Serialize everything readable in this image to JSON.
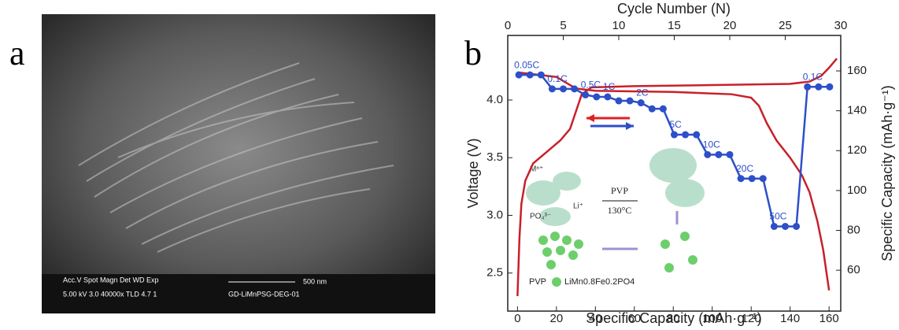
{
  "panel_a": {
    "label": "a",
    "info_header": "Acc.V  Spot Magn   Det  WD  Exp",
    "info_values": "5.00 kV 3.0  40000x  TLD 4.7   1",
    "scale_label": "500 nm",
    "sample_name": "GD-LiMnPSG-DEG-01"
  },
  "chart_data": {
    "type": "line",
    "panel_label": "b",
    "xlabel": "Specific Capacity (mAh·g⁻¹)",
    "x2label": "Cycle Number (N)",
    "ylabel": "Voltage (V)",
    "y2label": "Specific Capacity (mAh·g⁻¹)",
    "xlim": [
      -5,
      166
    ],
    "xticks": [
      0,
      20,
      40,
      60,
      80,
      100,
      120,
      140,
      160
    ],
    "x2lim": [
      0,
      30
    ],
    "x2ticks": [
      0,
      5,
      10,
      15,
      20,
      25,
      30
    ],
    "ylim": [
      2.17,
      4.56
    ],
    "yticks": [
      {
        "value": 2.5,
        "label": "2.5"
      },
      {
        "value": 3,
        "label": "3.0"
      },
      {
        "value": 3.5,
        "label": "3.5"
      },
      {
        "value": 4,
        "label": "4.0"
      }
    ],
    "y2lim": [
      39.5,
      177.8
    ],
    "y2ticks": [
      60,
      80,
      100,
      120,
      140,
      160
    ],
    "series": [
      {
        "color": "#c8202a",
        "x": [
          0,
          1,
          2,
          4,
          8,
          15,
          22,
          27,
          30,
          33,
          38,
          60,
          100,
          140,
          150,
          156,
          160,
          164
        ],
        "values": [
          2.3,
          2.8,
          3.1,
          3.3,
          3.45,
          3.55,
          3.65,
          3.75,
          3.9,
          4.05,
          4.11,
          4.12,
          4.13,
          4.14,
          4.16,
          4.21,
          4.28,
          4.36
        ]
      },
      {
        "color": "#c8202a",
        "x": [
          0,
          10,
          20,
          25,
          30,
          40,
          80,
          110,
          120,
          124,
          128,
          133,
          140,
          146,
          150,
          154,
          157,
          160
        ],
        "values": [
          4.24,
          4.22,
          4.2,
          4.15,
          4.1,
          4.08,
          4.07,
          4.05,
          4.02,
          3.95,
          3.8,
          3.65,
          3.5,
          3.35,
          3.2,
          2.95,
          2.7,
          2.35
        ]
      },
      {
        "color": "#2d4fc8",
        "axis": "y2",
        "xaxis": "x2",
        "x": [
          1,
          2,
          3,
          4,
          5,
          6,
          7,
          8,
          9,
          10,
          11,
          12,
          13,
          14,
          15,
          16,
          17,
          18,
          19,
          20,
          21,
          22,
          23,
          24,
          25,
          26,
          27,
          28,
          29
        ],
        "values": [
          158,
          158,
          158,
          151,
          151,
          151,
          148,
          147,
          147,
          145,
          145,
          144,
          141,
          141,
          128,
          128,
          128,
          118,
          118,
          118,
          106,
          106,
          106,
          82,
          82,
          82,
          152,
          152,
          152
        ],
        "point_labels": [
          "0.05C",
          null,
          null,
          "0.1C",
          null,
          null,
          "0.5C",
          null,
          "1C",
          null,
          null,
          "2C",
          null,
          null,
          "5C",
          null,
          null,
          "10C",
          null,
          null,
          "20C",
          null,
          null,
          "50C",
          null,
          null,
          "0.1C",
          null,
          null
        ]
      }
    ],
    "inset": {
      "agent": "PVP",
      "temperature": "130°C",
      "ion_m": "Mⁿ⁺",
      "ion_po4": "PO₄³⁻",
      "ion_li": "Li⁺",
      "legend_pvp": "PVP",
      "legend_product": "LiMn0.8Fe0.2PO4"
    }
  }
}
